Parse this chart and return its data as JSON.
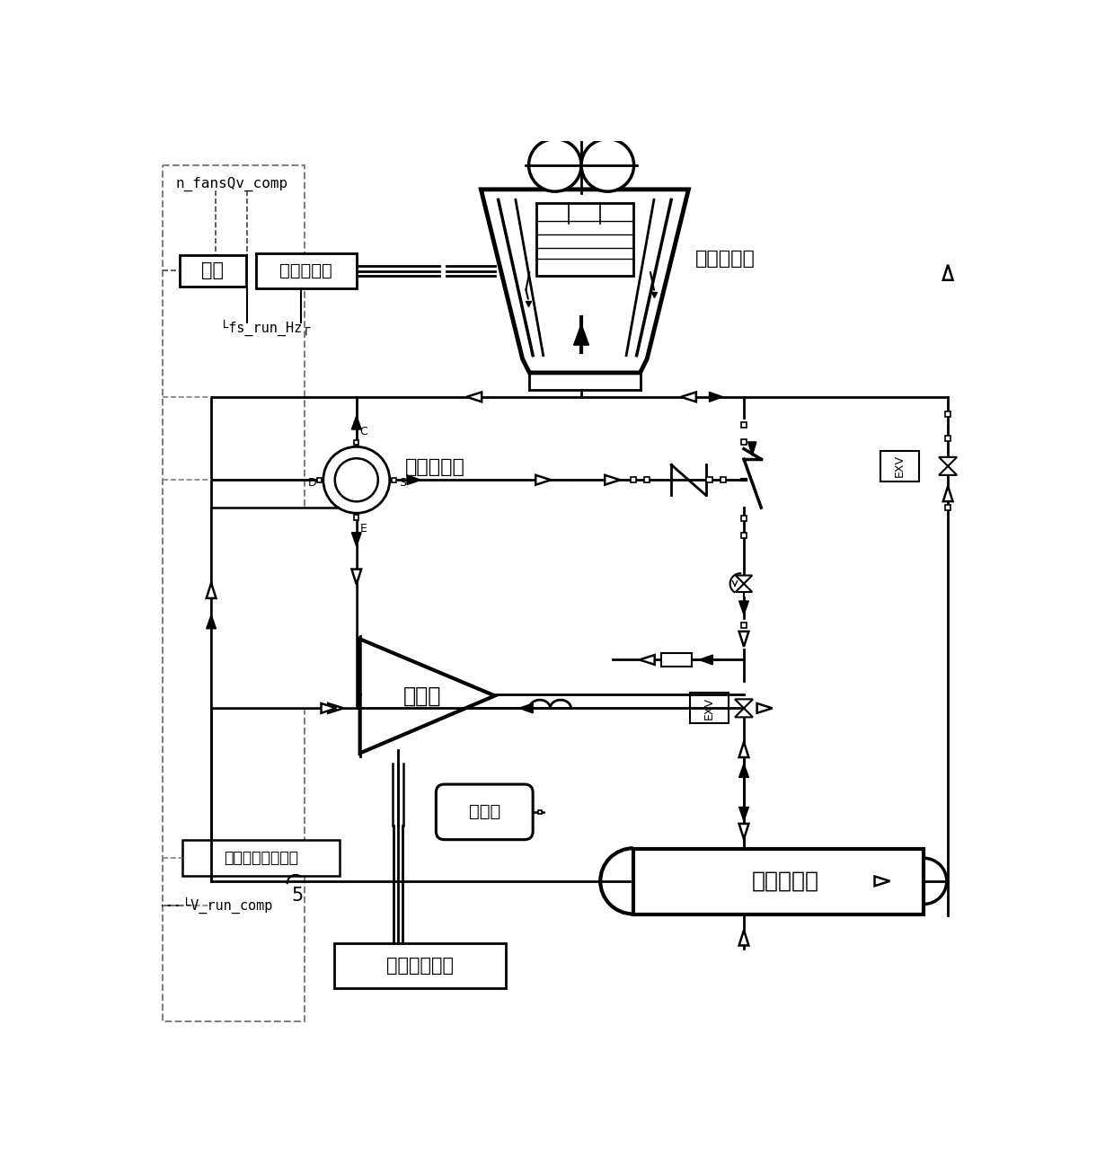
{
  "bg_color": "#ffffff",
  "lc": "#000000",
  "labels": {
    "n_fansQv_comp": "n_fansQv_comp",
    "main_board": "主板",
    "fan_inverter": "风机变频器",
    "fs_run_Hz": "└fs_run_Hz┌",
    "four_way_valve": "四通换向阀",
    "wind_heat_exchanger": "风侧换热器",
    "compressor": "压缩机",
    "separator": "分离器",
    "slide_valve_sensor": "滑阀位置传感机构",
    "V_run_comp": "└V_run_comp",
    "compressor_starter": "压缩机启动柜",
    "water_heat_exchanger": "水侧换热器",
    "label_5": "5",
    "EXV": "EXV",
    "C": "C",
    "D": "D",
    "S": "S",
    "E": "E"
  }
}
